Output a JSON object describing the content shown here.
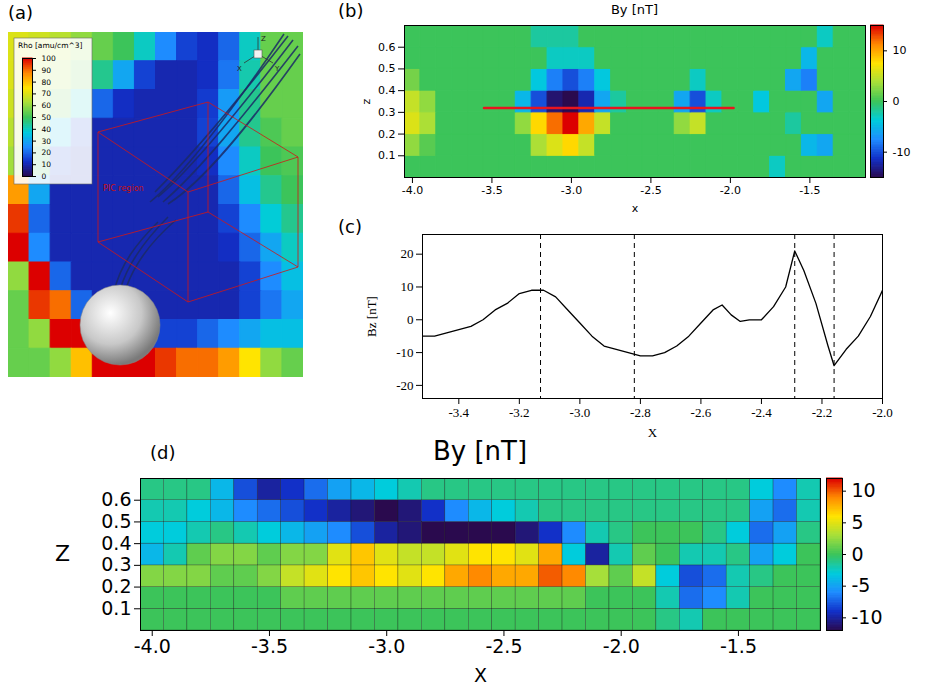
{
  "chart_data": [
    {
      "type": "heatmap",
      "panel": "(a)",
      "tick_labels": false,
      "legend": "top-left",
      "colorbar": {
        "label": "Rho [amu/cm^3]",
        "range": [
          0,
          100
        ],
        "ticks": [
          0,
          10,
          20,
          30,
          40,
          50,
          60,
          70,
          80,
          90,
          100
        ]
      },
      "annotations": [
        "PIC region"
      ],
      "axes_triad": [
        "X",
        "Y",
        "Z"
      ],
      "values": [
        [
          70,
          68,
          65,
          60,
          55,
          50,
          40,
          25,
          15,
          12,
          20,
          40,
          55,
          55
        ],
        [
          70,
          66,
          62,
          55,
          45,
          30,
          15,
          10,
          10,
          12,
          22,
          42,
          55,
          55
        ],
        [
          68,
          64,
          55,
          40,
          20,
          12,
          10,
          10,
          10,
          14,
          28,
          45,
          55,
          55
        ],
        [
          65,
          58,
          35,
          15,
          10,
          10,
          10,
          10,
          10,
          15,
          30,
          45,
          52,
          55
        ],
        [
          62,
          50,
          15,
          10,
          10,
          10,
          10,
          10,
          10,
          12,
          25,
          40,
          50,
          52
        ],
        [
          85,
          30,
          10,
          10,
          10,
          10,
          10,
          10,
          10,
          10,
          20,
          35,
          45,
          50
        ],
        [
          95,
          20,
          10,
          10,
          10,
          10,
          10,
          10,
          10,
          10,
          15,
          25,
          38,
          45
        ],
        [
          100,
          25,
          10,
          10,
          10,
          10,
          10,
          10,
          10,
          10,
          12,
          20,
          30,
          40
        ],
        [
          60,
          100,
          20,
          10,
          10,
          10,
          10,
          10,
          10,
          10,
          10,
          15,
          25,
          35
        ],
        [
          55,
          95,
          90,
          20,
          10,
          10,
          10,
          10,
          10,
          10,
          10,
          15,
          22,
          30
        ],
        [
          55,
          60,
          100,
          100,
          60,
          25,
          15,
          15,
          15,
          20,
          25,
          30,
          35,
          35
        ],
        [
          55,
          55,
          60,
          80,
          100,
          100,
          100,
          95,
          90,
          90,
          85,
          75,
          60,
          55
        ]
      ]
    },
    {
      "type": "heatmap",
      "panel": "(b)",
      "title": "By [nT]",
      "x_label": "x",
      "y_label": "z",
      "xlim": [
        -4.05,
        -1.15
      ],
      "xticks": [
        {
          "value": -4,
          "label": "-4.0"
        },
        -3.5,
        {
          "value": -3,
          "label": "-3.0"
        },
        -2.5,
        {
          "value": -2,
          "label": "-2.0"
        },
        -1.5
      ],
      "ylim": [
        0,
        0.7
      ],
      "yticks": [
        0.1,
        0.2,
        0.3,
        0.4,
        0.5,
        0.6
      ],
      "colorbar": {
        "range": [
          -15,
          15
        ],
        "ticks": [
          -10,
          0,
          10
        ]
      },
      "segment": {
        "x": [
          -3.55,
          -1.98
        ],
        "y": 0.32,
        "color": "#e8141e"
      },
      "x": [
        -4.0,
        -3.9,
        -3.8,
        -3.7,
        -3.6,
        -3.5,
        -3.4,
        -3.3,
        -3.2,
        -3.1,
        -3.0,
        -2.9,
        -2.8,
        -2.7,
        -2.6,
        -2.5,
        -2.4,
        -2.3,
        -2.2,
        -2.1,
        -2.0,
        -1.9,
        -1.8,
        -1.7,
        -1.6,
        -1.5,
        -1.4,
        -1.3,
        -1.2
      ],
      "z": [
        0.05,
        0.15,
        0.25,
        0.35,
        0.45,
        0.55,
        0.65
      ],
      "values": [
        [
          0,
          0,
          0,
          0,
          0,
          0,
          0,
          0,
          0,
          0,
          0,
          0,
          0,
          0,
          0,
          0,
          0,
          0,
          0,
          0,
          0,
          0,
          0,
          -3,
          0,
          0,
          0,
          0,
          0
        ],
        [
          3,
          1,
          0,
          0,
          0,
          0,
          0,
          0,
          4,
          6,
          8,
          5,
          0,
          0,
          0,
          0,
          0,
          0,
          0,
          0,
          0,
          0,
          0,
          0,
          0,
          -5,
          -6,
          0,
          0
        ],
        [
          6,
          4,
          0,
          0,
          0,
          0,
          0,
          3,
          8,
          12,
          15,
          10,
          5,
          0,
          0,
          0,
          0,
          3,
          5,
          0,
          0,
          0,
          0,
          0,
          -2,
          0,
          0,
          0,
          0
        ],
        [
          5,
          3,
          0,
          0,
          0,
          0,
          0,
          -5,
          -10,
          -14,
          -15,
          -12,
          -6,
          -2,
          0,
          0,
          0,
          -6,
          -10,
          -3,
          0,
          0,
          -4,
          0,
          0,
          0,
          -6,
          0,
          0
        ],
        [
          2,
          0,
          0,
          0,
          0,
          0,
          0,
          0,
          -4,
          -8,
          -10,
          -8,
          -4,
          0,
          0,
          0,
          0,
          0,
          -3,
          0,
          0,
          0,
          0,
          0,
          -6,
          -8,
          0,
          0,
          0
        ],
        [
          0,
          0,
          0,
          0,
          0,
          0,
          0,
          0,
          0,
          -3,
          -3,
          -3,
          0,
          0,
          0,
          0,
          0,
          0,
          0,
          0,
          0,
          0,
          0,
          0,
          0,
          -5,
          0,
          0,
          0
        ],
        [
          0,
          0,
          0,
          0,
          0,
          0,
          0,
          0,
          -2,
          -2,
          -2,
          0,
          0,
          0,
          0,
          0,
          0,
          0,
          0,
          0,
          0,
          0,
          0,
          0,
          0,
          0,
          -3,
          0,
          0
        ]
      ]
    },
    {
      "type": "line",
      "panel": "(c)",
      "x_label": "X",
      "y_label": "Bz [nT]",
      "color": "#000000",
      "xlim": [
        -3.52,
        -2.0
      ],
      "xticks": [
        -3.4,
        -3.2,
        {
          "value": -3,
          "label": "-3.0"
        },
        -2.8,
        -2.6,
        -2.4,
        -2.2,
        {
          "value": -2,
          "label": "-2.0"
        }
      ],
      "ylim": [
        -24,
        26
      ],
      "yticks": [
        -20,
        -10,
        0,
        10,
        20
      ],
      "vlines": [
        -3.13,
        -2.82,
        -2.29,
        -2.16
      ],
      "x": [
        -3.52,
        -3.48,
        -3.44,
        -3.4,
        -3.36,
        -3.32,
        -3.28,
        -3.24,
        -3.2,
        -3.16,
        -3.12,
        -3.08,
        -3.04,
        -3.0,
        -2.96,
        -2.92,
        -2.88,
        -2.84,
        -2.8,
        -2.76,
        -2.72,
        -2.68,
        -2.64,
        -2.6,
        -2.56,
        -2.53,
        -2.5,
        -2.47,
        -2.44,
        -2.4,
        -2.36,
        -2.32,
        -2.29,
        -2.26,
        -2.22,
        -2.18,
        -2.16,
        -2.12,
        -2.08,
        -2.04,
        -2.0
      ],
      "values": [
        -5,
        -5,
        -4,
        -3,
        -2,
        0,
        3,
        5,
        8,
        9,
        9,
        7,
        3,
        -1,
        -5,
        -8,
        -9,
        -10,
        -11,
        -11,
        -10,
        -8,
        -5,
        -1,
        3,
        4.5,
        1.5,
        -0.5,
        0,
        0,
        4,
        10,
        21,
        15,
        5,
        -8,
        -14,
        -9,
        -5,
        1,
        9
      ]
    },
    {
      "type": "heatmap",
      "panel": "(d)",
      "title": "By [nT]",
      "x_label": "X",
      "y_label": "Z",
      "xlim": [
        -4.05,
        -1.15
      ],
      "xticks": [
        {
          "value": -4,
          "label": "-4.0"
        },
        -3.5,
        {
          "value": -3,
          "label": "-3.0"
        },
        -2.5,
        {
          "value": -2,
          "label": "-2.0"
        },
        -1.5
      ],
      "ylim": [
        0,
        0.7
      ],
      "yticks": [
        0.1,
        0.2,
        0.3,
        0.4,
        0.5,
        0.6
      ],
      "colorbar": {
        "range": [
          -12,
          12
        ],
        "ticks": [
          -10,
          -5,
          0,
          5,
          10
        ]
      },
      "x": [
        -4.0,
        -3.9,
        -3.8,
        -3.7,
        -3.6,
        -3.5,
        -3.4,
        -3.3,
        -3.2,
        -3.1,
        -3.0,
        -2.9,
        -2.8,
        -2.7,
        -2.6,
        -2.5,
        -2.4,
        -2.3,
        -2.2,
        -2.1,
        -2.0,
        -1.9,
        -1.8,
        -1.7,
        -1.6,
        -1.5,
        -1.4,
        -1.3,
        -1.2
      ],
      "z": [
        0.05,
        0.15,
        0.25,
        0.35,
        0.45,
        0.55,
        0.65
      ],
      "values": [
        [
          0,
          0,
          0,
          0,
          0,
          0,
          0,
          0,
          0,
          0,
          0,
          0,
          0,
          0,
          0,
          0,
          0,
          0,
          0,
          0,
          0,
          0,
          -1,
          -2,
          0,
          0,
          0,
          0,
          0
        ],
        [
          0,
          0,
          0,
          0,
          0,
          0,
          1,
          1,
          1,
          1,
          1,
          1,
          1,
          1,
          1,
          1,
          1,
          1,
          1,
          0,
          0,
          0,
          -2,
          -7,
          -6,
          -2,
          0,
          0,
          0
        ],
        [
          2,
          2,
          2,
          1,
          1,
          2,
          4,
          5,
          6,
          7,
          6,
          5,
          6,
          8,
          9,
          8,
          8,
          10,
          9,
          3,
          1,
          4,
          -3,
          -8,
          -7,
          -2,
          -1,
          0,
          0
        ],
        [
          -4,
          -2,
          1,
          2,
          2,
          1,
          2,
          2,
          5,
          7,
          5,
          4,
          4,
          5,
          6,
          6,
          5,
          8,
          -3,
          -10,
          -2,
          1,
          0,
          -2,
          -2,
          -1,
          -5,
          -3,
          0
        ],
        [
          -3,
          -3,
          -2,
          -1,
          -2,
          -3,
          -4,
          -5,
          -6,
          -8,
          -10,
          -11,
          -12,
          -13,
          -12,
          -12,
          -11,
          -9,
          -6,
          -2,
          -1,
          0,
          0,
          0,
          -1,
          -3,
          -7,
          -5,
          -1
        ],
        [
          -2,
          -2,
          -3,
          -4,
          -6,
          -7,
          -8,
          -9,
          -10,
          -11,
          -12,
          -11,
          -9,
          -6,
          -4,
          -3,
          -2,
          -1,
          -1,
          -1,
          -1,
          -1,
          -1,
          -1,
          -1,
          -1,
          -5,
          -7,
          -2
        ],
        [
          -1,
          -1,
          -1,
          -4,
          -8,
          -10,
          -9,
          -7,
          -5,
          -4,
          -3,
          -2,
          -1,
          -1,
          -1,
          -1,
          -1,
          -1,
          -1,
          -1,
          -1,
          -1,
          -1,
          -1,
          -1,
          -1,
          -3,
          -6,
          -2
        ]
      ]
    }
  ]
}
